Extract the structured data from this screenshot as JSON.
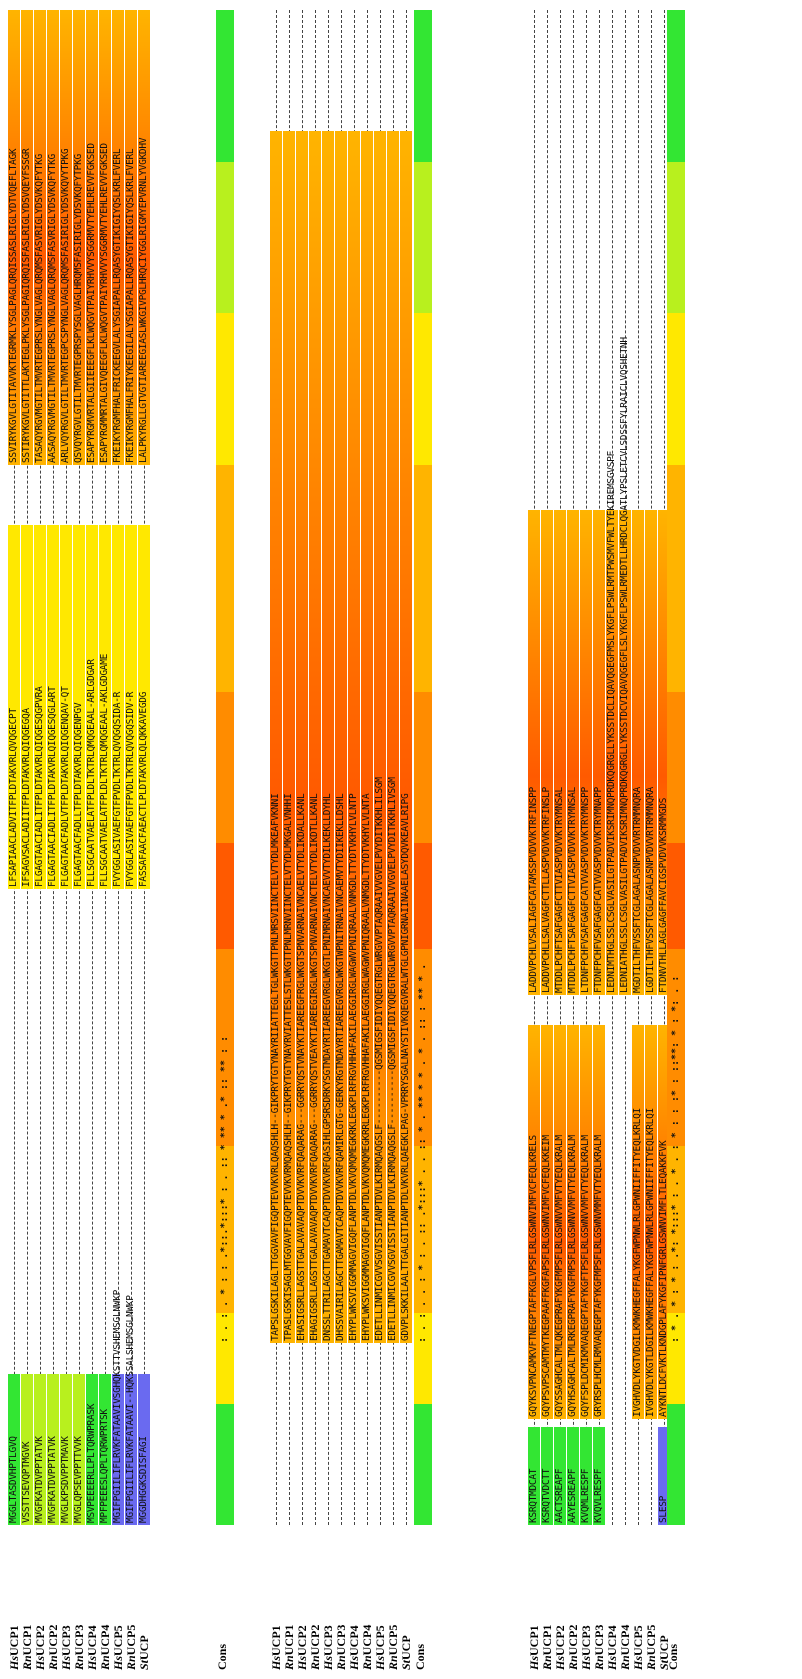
{
  "figure": {
    "species_labels": [
      {
        "prefix": "Hs",
        "name": "UCP1"
      },
      {
        "prefix": "Rn",
        "name": "UCP1"
      },
      {
        "prefix": "Hs",
        "name": "UCP2"
      },
      {
        "prefix": "Rn",
        "name": "UCP2"
      },
      {
        "prefix": "Hs",
        "name": "UCP3"
      },
      {
        "prefix": "Rn",
        "name": "UCP3"
      },
      {
        "prefix": "Hs",
        "name": "UCP4"
      },
      {
        "prefix": "Rn",
        "name": "UCP4"
      },
      {
        "prefix": "Hs",
        "name": "UCP5"
      },
      {
        "prefix": "Rn",
        "name": "UCP5"
      },
      {
        "prefix": "St",
        "name": "UCP"
      }
    ],
    "consensus_label": "Cons",
    "colors": {
      "green": "#33e633",
      "lime": "#b8f01e",
      "yellow": "#ffe800",
      "lightorange": "#ffb400",
      "orange": "#ff8c00",
      "redorange": "#ff5a00",
      "blue": "#6a6af0"
    },
    "blocks": [
      {
        "rows": [
          {
            "segments": [
              {
                "len": "short",
                "color": "green",
                "text": "MGGLTASDVHPTLGVQ"
              },
              {
                "len": "gap"
              },
              {
                "len": "long",
                "color": "yellow",
                "text": "LFSAPIAACLADVITFPLDTAKVRLQVQGECPT"
              },
              {
                "len": "gap2"
              },
              {
                "len": "long2",
                "color": "orange",
                "text": "SSVIRYKGVLGTITAVVKTEGRMKLYSGLPAGLQRQISSASLRIGLYDTVQEFLTAGK"
              }
            ]
          },
          {
            "segments": [
              {
                "len": "short",
                "color": "lime",
                "text": "VSSTTSEVQPTMGVK"
              },
              {
                "len": "gap"
              },
              {
                "len": "long",
                "color": "yellow",
                "text": "IFSAGVSACLADIITFPLDTAKVRLQIQGEGQA"
              },
              {
                "len": "gap2"
              },
              {
                "len": "long2",
                "color": "orange",
                "text": "SSTIRYKGVLGTITTLAKTEGLPKLYSGLPAGIQRQISFASLRIGLYDSVQEYFSSGR"
              }
            ]
          },
          {
            "segments": [
              {
                "len": "short",
                "color": "lime",
                "text": "MVGFKATDVPPTATVK"
              },
              {
                "len": "gap"
              },
              {
                "len": "long",
                "color": "yellow",
                "text": "FLGAGTAACIADLITFPLDTAKVRLQIQGESQGPVRA"
              },
              {
                "len": "gap2"
              },
              {
                "len": "long2",
                "color": "orange",
                "text": "TASAQYRGVMGTILTMVRTEGPRSLYNGLVAGLQRQMSFASVRIGLYDSVKQFYTKG"
              }
            ]
          },
          {
            "segments": [
              {
                "len": "short",
                "color": "lime",
                "text": "MVGFKATDVPPTATVK"
              },
              {
                "len": "gap"
              },
              {
                "len": "long",
                "color": "yellow",
                "text": "FLGAGTAACIADLITFPLDTAKVRLQIQGESQGLART"
              },
              {
                "len": "gap2"
              },
              {
                "len": "long2",
                "color": "orange",
                "text": "AASAQYRGVMGTILTMVRTEGPRSLYNGLVAGLQRQMSFASVRIGLYDSVKQFYTKG"
              }
            ]
          },
          {
            "segments": [
              {
                "len": "short",
                "color": "lime",
                "text": "MVGLKPSDVPPTMAVK"
              },
              {
                "len": "gap"
              },
              {
                "len": "long",
                "color": "yellow",
                "text": "FLGAGTAACFADLVTFPLDTAKVRLQIQGENQAV-QT"
              },
              {
                "len": "gap2"
              },
              {
                "len": "long2",
                "color": "orange",
                "text": "ARLVQYRGVLGTILTMVRTEGPCSPYNGLVAGLQRQMSFASIRIGLYDSVKQVYTPKG"
              }
            ]
          },
          {
            "segments": [
              {
                "len": "short",
                "color": "lime",
                "text": "MVGLQPSEVPPTTVVK"
              },
              {
                "len": "gap"
              },
              {
                "len": "long",
                "color": "yellow",
                "text": "FLGAGTAACFADLLTFPLDTAKVRLQIQGENPGV"
              },
              {
                "len": "gap2"
              },
              {
                "len": "long2",
                "color": "orange",
                "text": "QSVQYRGVLGTILTMVRTEGPRSPYSGLVAGLHRQMSFASIRIGLYDSVKQFYTPKG"
              }
            ]
          },
          {
            "segments": [
              {
                "len": "short",
                "color": "green",
                "text": "MSVPEEEERLLPLTQRWPRASK"
              },
              {
                "len": "gap"
              },
              {
                "len": "long",
                "color": "yellow",
                "text": "FLLSGCAATVAELATFPLDLTKTRLQMQGEAAL-ARLGDGAR"
              },
              {
                "len": "gap2"
              },
              {
                "len": "long2",
                "color": "orange",
                "text": "ESAPYRGMVRTALGIIEEEGFLKLWQGVTPAIYRHVVYSGGRMVTYEHLREVVFGKSED"
              }
            ]
          },
          {
            "segments": [
              {
                "len": "short",
                "color": "green",
                "text": "MPFPEEESLQPLTQRWPRTSK"
              },
              {
                "len": "gap"
              },
              {
                "len": "long",
                "color": "yellow",
                "text": "FLLSGCAATVAELATFPLDLTKTRLQMQGEAAL-AKLGDGAME"
              },
              {
                "len": "gap2"
              },
              {
                "len": "long2",
                "color": "orange",
                "text": "ESAPYRGMMRTALGIVQEEGFLKLWQGVTPAIYRHVVYSGGRMVTYEHLREVVFGKSED"
              }
            ]
          },
          {
            "segments": [
              {
                "len": "short",
                "color": "blue",
                "text": "MGIFPGIILIFLRVKFATAAVIVSGHQKSTTVSHEMSGLNWKP"
              },
              {
                "len": "gap"
              },
              {
                "len": "long",
                "color": "yellow",
                "text": "FVYGGLASIVAEFGTFPVDLTKTRLQVQGQSIDA-R"
              },
              {
                "len": "gap2"
              },
              {
                "len": "long2",
                "color": "orange",
                "text": "FKEIKYRGMFHALFRICKEEGVLALYSGIAPALLRQASYGTIKIGIYQSLKRLFVERL"
              }
            ]
          },
          {
            "segments": [
              {
                "len": "short",
                "color": "blue",
                "text": "MGIFPGIILIFLRVKFATAAVI--HQKSSALSHEMSGLNWKP"
              },
              {
                "len": "gap"
              },
              {
                "len": "long",
                "color": "yellow",
                "text": "FVYGGLASIVAEFGTFPVDLTKTRLQVQGQSIDV-R"
              },
              {
                "len": "gap2"
              },
              {
                "len": "long2",
                "color": "orange",
                "text": "FKEIKYRGMFHALFRIYKEEGILALYSGIAPALLRQASYGTIKIGIYQSLKRLFVERL"
              }
            ]
          },
          {
            "segments": [
              {
                "len": "short",
                "color": "blue",
                "text": "MGGDHGGKSDISFAGI"
              },
              {
                "len": "gap"
              },
              {
                "len": "long",
                "color": "yellow",
                "text": "FASSAFAACFAEACTLPLDTAKVRLQLQKKAVEGDG"
              },
              {
                "len": "gap2"
              },
              {
                "len": "long2",
                "color": "orange",
                "text": "LALPKYRGLLGTVGTIAREEGIASLWKGIVPGLHRQCIYGGLRIGMYEPVRNLYVGKDHV"
              }
            ]
          }
        ],
        "consensus": ": .  : .  *  :  :  .*::.*:::*  :  .  ::  *  **  *  .*  ::  **  :  :"
      },
      {
        "rows": [
          {
            "segments": [
              {
                "len": "full",
                "color": "orange",
                "text": "TAPSLGSKILAGLTTGGVAVFIGQPTEVVKVRLQAQSHLH--GIKPRYTGTYNAYRIIATTEGLTGLWKGTTPNLMRSVIINCTELVTYDLMKEAFVKNNI"
              }
            ]
          },
          {
            "segments": [
              {
                "len": "full",
                "color": "orange",
                "text": "TPASLGSKISAGLMTGGVAVFIGQPTEVVKVRMQAQSHLH--GIKPRYTGTYNAYRVIATTESLSTLWKGTTPNLMRNVIINCTELVTYDLMKGALVNHHI"
              }
            ]
          },
          {
            "segments": [
              {
                "len": "full",
                "color": "orange",
                "text": "EHASIGSRLLAGSTTGALAVAVAQPTDVVKVRFQAQARAG---GGRRYQSTVNAYKTIAREEGFRGLWKGTSPNVARNAIVNCAELVTYDLIKDALLKANL"
              }
            ]
          },
          {
            "segments": [
              {
                "len": "full",
                "color": "orange",
                "text": "EHAGIGSRLLAGSTTGALAVAVAQPTDVVKVRFQAQARAG---GGRRYQSTVEAYKTIAREEGIRGLWKGTSPNVARNAIVNCTELVTYDLIKDTLLKANL"
              }
            ]
          },
          {
            "segments": [
              {
                "len": "full",
                "color": "orange",
                "text": "DNSSLTTRILAGCTTGAMAVTCAQPTDVVKVRFQASIHLGPSRSDRKYSGTMDAYRTIAREEGVRGLWKGTLPNIMRNAIVNCAEVVTYDILKEKLLDYHL"
              }
            ]
          },
          {
            "segments": [
              {
                "len": "full",
                "color": "orange",
                "text": "DHSSVAIRILAGCTTGAMAVTCAQPTDVVKVRFQAMIRLGTG-GERKYRGTMDAYRTIAREEGVRGLWKGTWPNITRNAIVNCAEMVTYDIIKEKLLDSHL"
              }
            ]
          },
          {
            "segments": [
              {
                "len": "full",
                "color": "orange",
                "text": "EHYPLWKSVIGGMMAGVIGQFLANPTDLVKVQMQMEGKRKLEGKPLRFRGVHHAFAKILAEGGIRGLWAGWVPNIQRAALVNMGDLTTYDTVKHYLVLNTP"
              }
            ]
          },
          {
            "segments": [
              {
                "len": "full",
                "color": "orange",
                "text": "EHYPLWKSVIGGMMAGVIGQFLANPTDLVKVQMQMEGKRRLEGKPLRFRGVHHAFAKILAEGGIRGLWAGWVPNIQRAALVNMGDLTTYDTVKHYLVLNTA"
              }
            ]
          },
          {
            "segments": [
              {
                "len": "full",
                "color": "orange",
                "text": "EDETLLINMICGVVSGVISSTIANPTDVLKIRMQAQGSLF----------QGSMIGSFIDIYQQEGTRGLWRGVVPTAQRAAIVVGVELPVYDITKKHLILSGM"
              }
            ]
          },
          {
            "segments": [
              {
                "len": "full",
                "color": "orange",
                "text": "EDETLLINMICGVVSGVISSTIANPTDVLKIRMQAQGSLF----------QGSMIGSFIDIYQQEGTRGLWRGVVPTAQRAAIVVGVELPVYDITKKHLIVSGM"
              }
            ]
          },
          {
            "segments": [
              {
                "len": "full",
                "color": "orange",
                "text": "GDVPLSKKILAALTTGALGITIANPTDLVKVRLQAEGKLPAG-VPRRYSGALNAYSTIVKQEGVRALWTGLGPNIGRNAIINAAELASYDQVKEAVLRIPG"
              }
            ]
          }
        ],
        "consensus": ":  .  :  .  .  :  *  :  .  ::  .*:::*  .  .  ::  *  .  **  *  *  .  *  .  ::  :  **  *  ."
      },
      {
        "rows": [
          {
            "segments": [
              {
                "len": "mid",
                "color": "orange",
                "text": "LADDVPCHLVSALIAGFCATAMSSPVDVVKTRFINSPP"
              },
              {
                "len": "mid2",
                "color": "orange",
                "text": "GQYKSVPNCAMKVFTNEGPTAFFKGLVPSFLRLGSWNVIMFVCFEQLKRELS"
              },
              {
                "len": "tail",
                "color": "green",
                "text": "KSRQTMDCAT"
              }
            ]
          },
          {
            "segments": [
              {
                "len": "mid",
                "color": "orange",
                "text": "LADDVPCHLLSALVAGFCTTLLASPVDVVKTRFINSLP"
              },
              {
                "len": "mid2",
                "color": "orange",
                "text": "GQYPSVPSCAMTMYTKEGPAAFFKGFAPSFLRLGSWNVIMFVCFEQLKKEIM"
              },
              {
                "len": "tail",
                "color": "green",
                "text": "KSRQTVDCTT"
              }
            ]
          },
          {
            "segments": [
              {
                "len": "mid",
                "color": "orange",
                "text": "MTDDLPCHFTSAFGAGFCTTVIASPVDVVKTRYMNSAL"
              },
              {
                "len": "mid2",
                "color": "orange",
                "text": "GQYSSAGHCALTMLQKEGPRAFYKGFMPSFLRLGSWNVVMFVTYEQLKRALM"
              },
              {
                "len": "tail",
                "color": "green",
                "text": "AACTSREAPF"
              }
            ]
          },
          {
            "segments": [
              {
                "len": "mid",
                "color": "orange",
                "text": "MTDDLPCHFTSAFGAGFCTTVIASPVDVVKTRYMNSAL"
              },
              {
                "len": "mid2",
                "color": "orange",
                "text": "GQYHSAGHCALTMLRKEGPRAFYKGFMPSFLRLGSWNVVMFVTYEQLKRALM"
              },
              {
                "len": "tail",
                "color": "green",
                "text": "AAYESREAPF"
              }
            ]
          },
          {
            "segments": [
              {
                "len": "mid",
                "color": "orange",
                "text": "LTDNFPCHFVSAFGAGFCATVVASPVDVVKTRYMNSPP"
              },
              {
                "len": "mid2",
                "color": "orange",
                "text": "GQYFSPLDCMIKMVAQEGPTAFYKGFTPSFLRLGSWNVVMFVTYEQLKRALM"
              },
              {
                "len": "tail",
                "color": "green",
                "text": "KVQMLRESPF"
              }
            ]
          },
          {
            "segments": [
              {
                "len": "mid",
                "color": "orange",
                "text": "FTDNFPCHFVSAFGAGFCATVVASPVDVVKTRYMNAPP"
              },
              {
                "len": "mid2",
                "color": "orange",
                "text": "GRYRSPLHCMLRMVAQEGPTAFYKGFMPSFLRLGSWNVMMFVTYEQLKRALM"
              },
              {
                "len": "tail",
                "color": "green",
                "text": "KVQVLRESPF"
              }
            ]
          },
          {
            "segments": [
              {
                "len": "mid",
                "color": "orange",
                "text": "LEDNIMTHGLSSLCSGLVASILGTPADVIKSRIMNQPRDKQGRGLLYKSSTDCLIQAVQGEGFMSLYKGFLPSWLRMTPWSMVFWLTYEKIREMSGVSPF"
              }
            ]
          },
          {
            "segments": [
              {
                "len": "mid",
                "color": "orange",
                "text": "LEDNIATHGLSSLCSGLVASILGTPADVIKSRIMNQPRDKQGRGLLYKSSTDCVIQAVQGEGFLSLYKGFLPSWLRMEDTLLHRDCLQGATLYPSLETCVLSDSSFYLRAICLVQSHETNH"
              }
            ]
          },
          {
            "segments": [
              {
                "len": "mid",
                "color": "orange",
                "text": "MGDTILTHFVSSFTCGLAGALASNPVDVVRTRMMNQRA"
              },
              {
                "len": "mid2",
                "color": "orange",
                "text": "IVGHVDLYKGTVDGILKMWKHEGFFALYKGFWPNWLRLGPWNIIFFITYEQLKRLQI"
              }
            ]
          },
          {
            "segments": [
              {
                "len": "mid",
                "color": "orange",
                "text": "LGDTILTHFVSSFTCGLAGALASNPVDVVRTRMMNQRA"
              },
              {
                "len": "mid2",
                "color": "orange",
                "text": "IVGHVDLYKGTLDGILKMWKHEGFFALYKGFWPNWLRLGPWNIIFFITYEQLKRLQI"
              }
            ]
          },
          {
            "segments": [
              {
                "len": "mid",
                "color": "orange",
                "text": "FTDNVTHLLAGLGAGFFAVCIGSPVDVVKSRMMGDS"
              },
              {
                "len": "mid2",
                "color": "orange",
                "text": "AYKNTLDCFVKTLKNDGPLAFYKGFIPNFGRLGSWNVIMFLTLEQAKKFVK"
              },
              {
                "len": "tail",
                "color": "blue",
                "text": "SLESP"
              }
            ]
          }
        ],
        "consensus": ":  *  .  *  :  *  :  .*:  *:::*  :  .  *  .  :  *  :  :  :*  :  ::**:  *  :  *:  .  :"
      }
    ]
  }
}
